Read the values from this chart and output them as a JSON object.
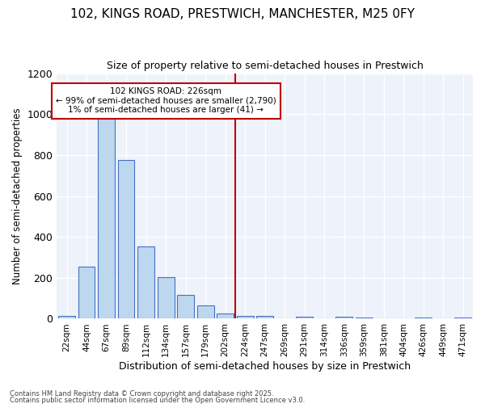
{
  "title1": "102, KINGS ROAD, PRESTWICH, MANCHESTER, M25 0FY",
  "title2": "Size of property relative to semi-detached houses in Prestwich",
  "xlabel": "Distribution of semi-detached houses by size in Prestwich",
  "ylabel": "Number of semi-detached properties",
  "bin_labels": [
    "22sqm",
    "44sqm",
    "67sqm",
    "89sqm",
    "112sqm",
    "134sqm",
    "157sqm",
    "179sqm",
    "202sqm",
    "224sqm",
    "247sqm",
    "269sqm",
    "291sqm",
    "314sqm",
    "336sqm",
    "359sqm",
    "381sqm",
    "404sqm",
    "426sqm",
    "449sqm",
    "471sqm"
  ],
  "bar_heights": [
    15,
    255,
    995,
    775,
    355,
    205,
    115,
    65,
    25,
    15,
    15,
    0,
    10,
    0,
    10,
    5,
    0,
    0,
    5,
    0,
    5
  ],
  "bar_color": "#bdd7ee",
  "bar_edge_color": "#4472c4",
  "vline_idx": 9,
  "vline_color": "#c00000",
  "annotation_text": "102 KINGS ROAD: 226sqm\n← 99% of semi-detached houses are smaller (2,790)\n1% of semi-detached houses are larger (41) →",
  "annotation_box_color": "#ffffff",
  "annotation_box_edge": "#c00000",
  "ylim": [
    0,
    1200
  ],
  "yticks": [
    0,
    200,
    400,
    600,
    800,
    1000,
    1200
  ],
  "footer1": "Contains HM Land Registry data © Crown copyright and database right 2025.",
  "footer2": "Contains public sector information licensed under the Open Government Licence v3.0.",
  "bg_color": "#ffffff",
  "plot_bg_color": "#eef2fb",
  "grid_color": "#ffffff",
  "title1_fontsize": 11,
  "title2_fontsize": 9,
  "bar_width": 0.85
}
